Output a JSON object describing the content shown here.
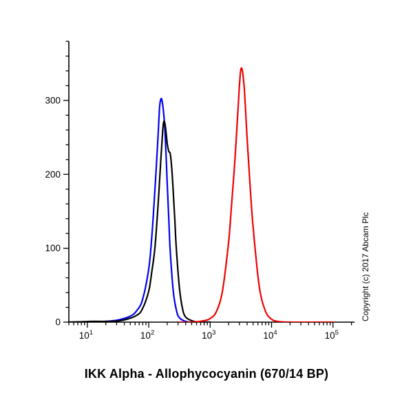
{
  "title": "IKK Alpha - Allophycocyanin (670/14 BP)",
  "copyright": "Copyright (c) 2017 Abcam Plc",
  "chart_data": {
    "type": "line",
    "subtype": "flow-cytometry-histogram",
    "title": "IKK Alpha - Allophycocyanin (670/14 BP)",
    "xlabel": "IKK Alpha - Allophycocyanin (670/14 BP)",
    "ylabel": "",
    "x_scale": "log10",
    "xlim": [
      5,
      224000
    ],
    "ylim": [
      0,
      380
    ],
    "x_tick_exponents": [
      1,
      2,
      3,
      4,
      5
    ],
    "x_tick_base": "10",
    "y_ticks": [
      0,
      100,
      200,
      300
    ],
    "y_minor_step": 20,
    "grid": false,
    "legend": "none",
    "axis_color": "#000000",
    "series": [
      {
        "name": "blue-curve",
        "color": "#0000ee",
        "peak_x": 158,
        "peak_y": 302,
        "points": [
          [
            5,
            0
          ],
          [
            10,
            0
          ],
          [
            20,
            1
          ],
          [
            32,
            3
          ],
          [
            50,
            8
          ],
          [
            63,
            15
          ],
          [
            79,
            30
          ],
          [
            100,
            72
          ],
          [
            112,
            115
          ],
          [
            126,
            178
          ],
          [
            141,
            248
          ],
          [
            150,
            290
          ],
          [
            158,
            302
          ],
          [
            166,
            298
          ],
          [
            178,
            276
          ],
          [
            188,
            242
          ],
          [
            200,
            188
          ],
          [
            212,
            140
          ],
          [
            224,
            96
          ],
          [
            251,
            42
          ],
          [
            282,
            16
          ],
          [
            316,
            6
          ],
          [
            398,
            1
          ],
          [
            501,
            0
          ],
          [
            1000,
            0
          ]
        ]
      },
      {
        "name": "black-curve",
        "color": "#000000",
        "peak_x": 178,
        "peak_y": 272,
        "points": [
          [
            5,
            0
          ],
          [
            12,
            1
          ],
          [
            25,
            1
          ],
          [
            40,
            3
          ],
          [
            63,
            9
          ],
          [
            79,
            18
          ],
          [
            100,
            42
          ],
          [
            112,
            68
          ],
          [
            126,
            100
          ],
          [
            141,
            155
          ],
          [
            158,
            222
          ],
          [
            170,
            262
          ],
          [
            178,
            272
          ],
          [
            188,
            263
          ],
          [
            200,
            242
          ],
          [
            212,
            231
          ],
          [
            224,
            228
          ],
          [
            237,
            208
          ],
          [
            251,
            176
          ],
          [
            266,
            138
          ],
          [
            282,
            98
          ],
          [
            316,
            46
          ],
          [
            355,
            18
          ],
          [
            398,
            7
          ],
          [
            501,
            2
          ],
          [
            631,
            0
          ],
          [
            1000,
            0
          ]
        ]
      },
      {
        "name": "red-curve",
        "color": "#ee0000",
        "peak_x": 3162,
        "peak_y": 342,
        "points": [
          [
            316,
            0
          ],
          [
            501,
            0
          ],
          [
            794,
            2
          ],
          [
            1000,
            5
          ],
          [
            1259,
            14
          ],
          [
            1585,
            42
          ],
          [
            1995,
            108
          ],
          [
            2239,
            160
          ],
          [
            2512,
            215
          ],
          [
            2818,
            282
          ],
          [
            3162,
            342
          ],
          [
            3548,
            322
          ],
          [
            3981,
            252
          ],
          [
            4467,
            185
          ],
          [
            5012,
            128
          ],
          [
            6310,
            48
          ],
          [
            7943,
            15
          ],
          [
            10000,
            4
          ],
          [
            12589,
            1
          ],
          [
            19953,
            0
          ],
          [
            100000,
            0
          ]
        ]
      }
    ]
  }
}
